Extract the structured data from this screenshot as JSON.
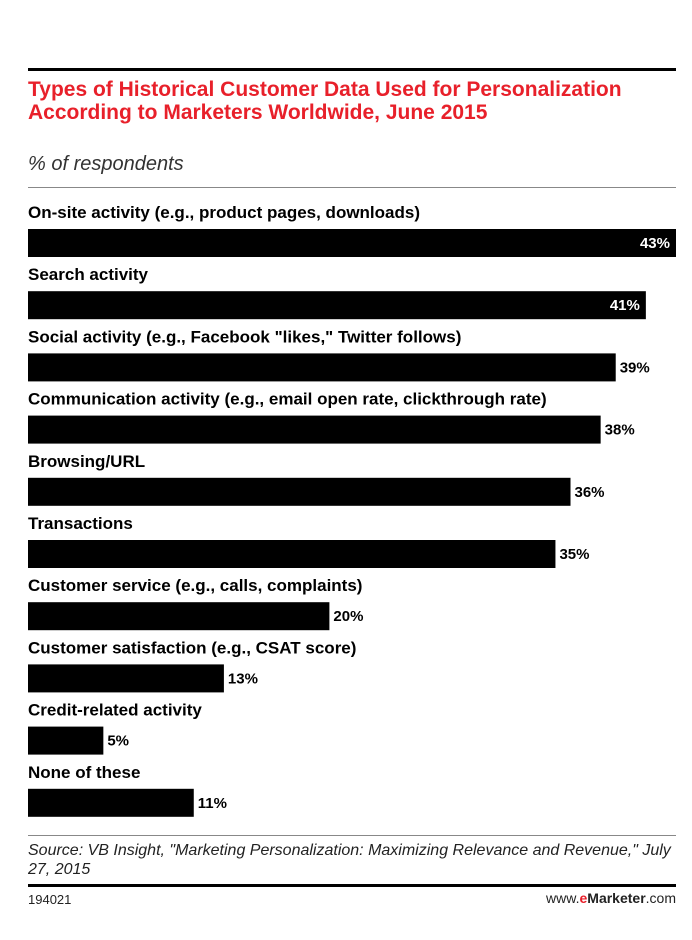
{
  "header": {
    "title": "Types of Historical Customer Data Used for Personalization According to Marketers Worldwide, June 2015",
    "subtitle": "% of respondents"
  },
  "footer": {
    "source": "Source: VB Insight, \"Marketing Personalization: Maximizing Relevance and Revenue,\" July 27, 2015",
    "chart_id": "194021",
    "brand_prefix": "www.",
    "brand_e": "e",
    "brand_name": "Marketer",
    "brand_suffix": ".com"
  },
  "colors": {
    "title": "#e8202a",
    "bar": "#000000"
  },
  "chart_data": {
    "type": "bar",
    "orientation": "horizontal",
    "categories": [
      "On-site activity (e.g., product pages, downloads)",
      "Search activity",
      "Social activity (e.g., Facebook \"likes,\" Twitter follows)",
      "Communication activity (e.g., email open rate, clickthrough rate)",
      "Browsing/URL",
      "Transactions",
      "Customer service (e.g., calls, complaints)",
      "Customer satisfaction (e.g., CSAT score)",
      "Credit-related activity",
      "None of these"
    ],
    "values": [
      43,
      41,
      39,
      38,
      36,
      35,
      20,
      13,
      5,
      11
    ],
    "value_labels": [
      "43%",
      "41%",
      "39%",
      "38%",
      "36%",
      "35%",
      "20%",
      "13%",
      "5%",
      "11%"
    ],
    "xlim": [
      0,
      43
    ]
  }
}
